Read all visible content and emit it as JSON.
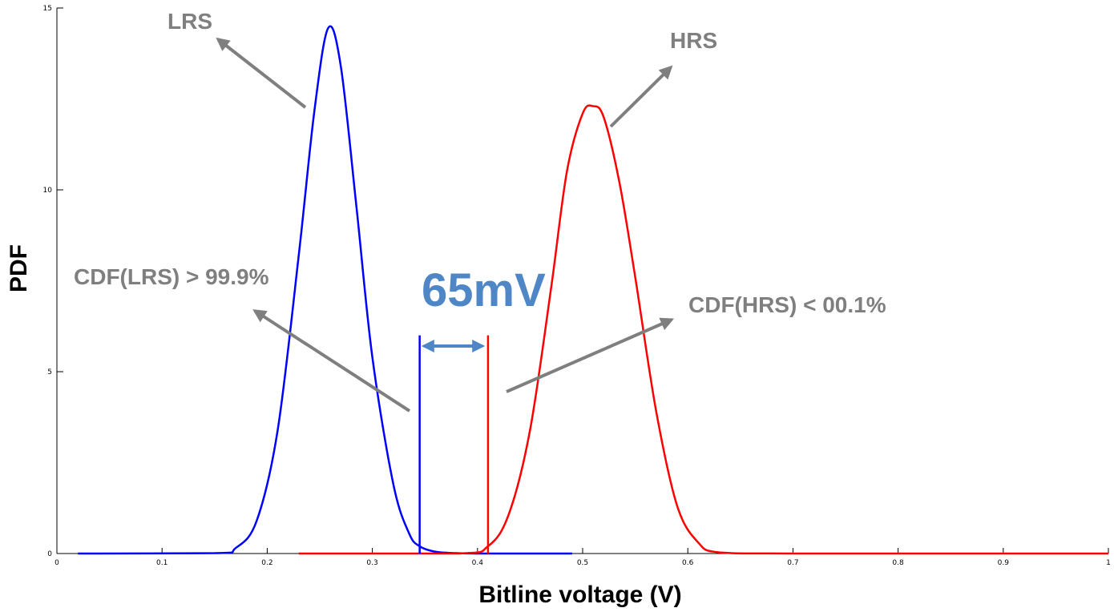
{
  "chart_data": {
    "type": "line",
    "title": "",
    "xlabel": "Bitline voltage (V)",
    "ylabel": "PDF",
    "xlim": [
      0,
      1
    ],
    "ylim": [
      0,
      15
    ],
    "x_ticks": [
      0,
      0.1,
      0.2,
      0.3,
      0.4,
      0.5,
      0.6,
      0.7,
      0.8,
      0.9,
      1
    ],
    "x_tick_labels": [
      "0",
      "0.1",
      "0.2",
      "0.3",
      "0.4",
      "0.5",
      "0.6",
      "0.7",
      "0.8",
      "0.9",
      "1"
    ],
    "y_ticks": [
      0,
      5,
      10,
      15
    ],
    "y_tick_labels": [
      "0",
      "5",
      "10",
      "15"
    ],
    "grid": false,
    "series": [
      {
        "color": "#0000ff",
        "x": [
          0.02,
          0.15,
          0.17,
          0.19,
          0.21,
          0.23,
          0.245,
          0.258,
          0.27,
          0.285,
          0.3,
          0.32,
          0.335,
          0.345,
          0.36,
          0.38,
          0.4,
          0.45,
          0.49
        ],
        "y": [
          0,
          0.01,
          0.15,
          0.9,
          3.4,
          8.2,
          12.2,
          14.45,
          13.4,
          9.5,
          5.4,
          1.9,
          0.55,
          0.2,
          0.05,
          0.01,
          0,
          0,
          0
        ]
      },
      {
        "color": "#ff0000",
        "x": [
          0.23,
          0.38,
          0.41,
          0.43,
          0.45,
          0.47,
          0.485,
          0.5,
          0.51,
          0.52,
          0.535,
          0.55,
          0.57,
          0.59,
          0.61,
          0.63,
          0.7,
          1.0
        ],
        "y": [
          0,
          0,
          0.2,
          1.1,
          3.4,
          7.3,
          10.5,
          12.1,
          12.3,
          12.0,
          10.2,
          7.6,
          3.9,
          1.3,
          0.3,
          0.03,
          0,
          0
        ]
      }
    ],
    "vlines": [
      {
        "x": 0.345,
        "y_top": 6.0,
        "color": "#0000ff"
      },
      {
        "x": 0.41,
        "y_top": 6.0,
        "color": "#ff0000"
      }
    ],
    "annotations": {
      "lrs": "LRS",
      "hrs": "HRS",
      "cdf_lrs": "CDF(LRS) > 99.9%",
      "cdf_hrs": "CDF(HRS) < 00.1%",
      "margin": "65mV"
    },
    "annotation_color": "#7f7f7f",
    "margin_color": "#4f86c6"
  }
}
